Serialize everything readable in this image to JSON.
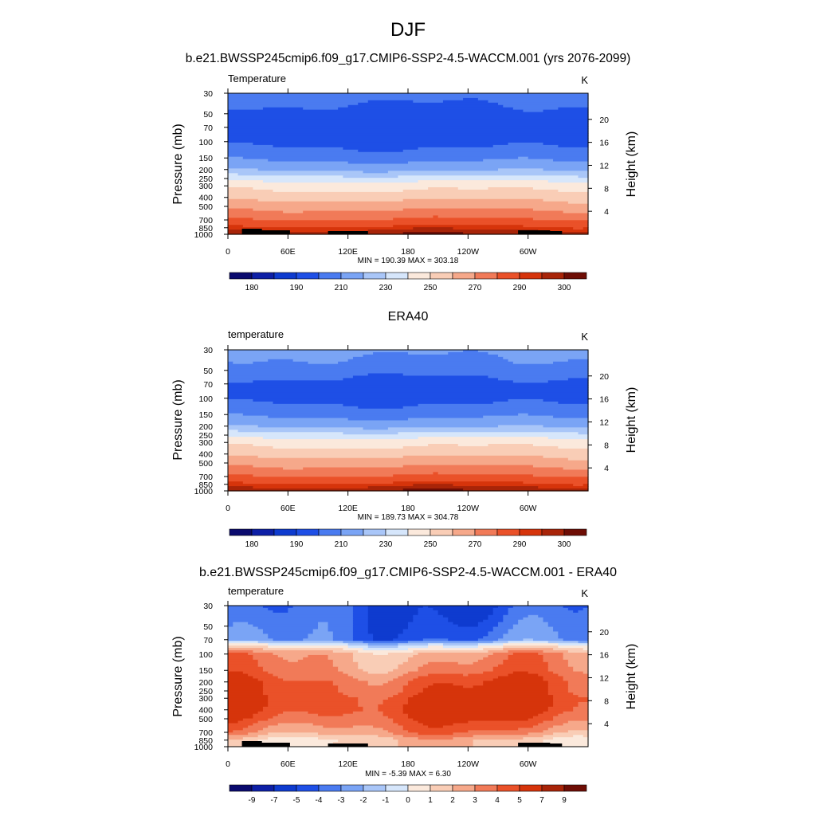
{
  "figure": {
    "title": "DJF",
    "subtitle": "b.e21.BWSSP245cmip6.f09_g17.CMIP6-SSP2-4.5-WACCM.001 (yrs 2076-2099)"
  },
  "chart_data": [
    {
      "type": "heatmap",
      "name": "model",
      "title": "",
      "left_string": "Temperature",
      "right_string": "K",
      "xlabel": "",
      "ylabel": "Pressure (mb)",
      "y2label": "Height (km)",
      "x_ticks": [
        "0",
        "60E",
        "120E",
        "180",
        "120W",
        "60W"
      ],
      "y_ticks": [
        "30",
        "50",
        "70",
        "100",
        "150",
        "200",
        "250",
        "300",
        "400",
        "500",
        "700",
        "850",
        "1000"
      ],
      "y2_ticks": [
        "4",
        "8",
        "12",
        "16",
        "20"
      ],
      "levels": [
        175,
        180,
        185,
        190,
        200,
        210,
        220,
        230,
        240,
        250,
        260,
        270,
        280,
        290,
        295,
        300
      ],
      "colorbar_labels": [
        "180",
        "190",
        "210",
        "230",
        "250",
        "270",
        "290",
        "300"
      ],
      "min_max_text": "MIN = 190.39  MAX = 303.18",
      "profile": {
        "pressure": [
          30,
          50,
          70,
          100,
          150,
          200,
          250,
          300,
          400,
          500,
          700,
          850,
          1000
        ],
        "value": [
          205,
          196,
          196,
          196,
          207,
          218,
          235,
          246,
          257,
          266,
          281,
          292,
          300
        ]
      },
      "topography": true
    },
    {
      "type": "heatmap",
      "name": "obs",
      "title": "ERA40",
      "left_string": "temperature",
      "right_string": "K",
      "xlabel": "",
      "ylabel": "Pressure (mb)",
      "y2label": "Height (km)",
      "x_ticks": [
        "0",
        "60E",
        "120E",
        "180",
        "120W",
        "60W"
      ],
      "y_ticks": [
        "30",
        "50",
        "70",
        "100",
        "150",
        "200",
        "250",
        "300",
        "400",
        "500",
        "700",
        "850",
        "1000"
      ],
      "y2_ticks": [
        "4",
        "8",
        "12",
        "16",
        "20"
      ],
      "levels": [
        175,
        180,
        185,
        190,
        200,
        210,
        220,
        230,
        240,
        250,
        260,
        270,
        280,
        290,
        295,
        300
      ],
      "colorbar_labels": [
        "180",
        "190",
        "210",
        "230",
        "250",
        "270",
        "290",
        "300"
      ],
      "min_max_text": "MIN = 189.73  MAX = 304.78",
      "profile": {
        "pressure": [
          30,
          50,
          70,
          100,
          150,
          200,
          250,
          300,
          400,
          500,
          700,
          850,
          1000
        ],
        "value": [
          213,
          205,
          196,
          196,
          207,
          218,
          235,
          246,
          257,
          266,
          281,
          292,
          300
        ]
      },
      "topography": false
    },
    {
      "type": "heatmap",
      "name": "difference",
      "title": "b.e21.BWSSP245cmip6.f09_g17.CMIP6-SSP2-4.5-WACCM.001 - ERA40",
      "left_string": "temperature",
      "right_string": "K",
      "xlabel": "",
      "ylabel": "Pressure (mb)",
      "y2label": "Height (km)",
      "x_ticks": [
        "0",
        "60E",
        "120E",
        "180",
        "120W",
        "60W"
      ],
      "y_ticks": [
        "30",
        "50",
        "70",
        "100",
        "150",
        "200",
        "250",
        "300",
        "400",
        "500",
        "700",
        "850",
        "1000"
      ],
      "y2_ticks": [
        "4",
        "8",
        "12",
        "16",
        "20"
      ],
      "levels": [
        -11,
        -9,
        -7,
        -5,
        -4,
        -3,
        -2,
        -1,
        0,
        1,
        2,
        3,
        4,
        5,
        7,
        9
      ],
      "colorbar_labels": [
        "-9",
        "-7",
        "-5",
        "-4",
        "-3",
        "-2",
        "-1",
        "0",
        "1",
        "2",
        "3",
        "4",
        "5",
        "7",
        "9"
      ],
      "min_max_text": "MIN =  -5.39  MAX =   6.30",
      "profile": {
        "pressure": [
          30,
          50,
          70,
          80,
          100,
          150,
          200,
          250,
          300,
          400,
          500,
          700,
          850,
          1000
        ],
        "value": [
          -4.6,
          -4.1,
          -3.6,
          -0.3,
          2.6,
          3.3,
          4.4,
          4.6,
          5.1,
          5.1,
          4.5,
          3.2,
          1.5,
          1.5
        ]
      },
      "topography": true
    }
  ],
  "palette": [
    "#0a0a6e",
    "#0d1fa6",
    "#0e3bcf",
    "#1e4fe6",
    "#4a7bf0",
    "#7aa4f5",
    "#a9c6f8",
    "#d6e6fb",
    "#fbe9dc",
    "#f9cdb6",
    "#f6a88a",
    "#f17a58",
    "#ea5129",
    "#d6340b",
    "#a82408",
    "#6e0d05"
  ]
}
